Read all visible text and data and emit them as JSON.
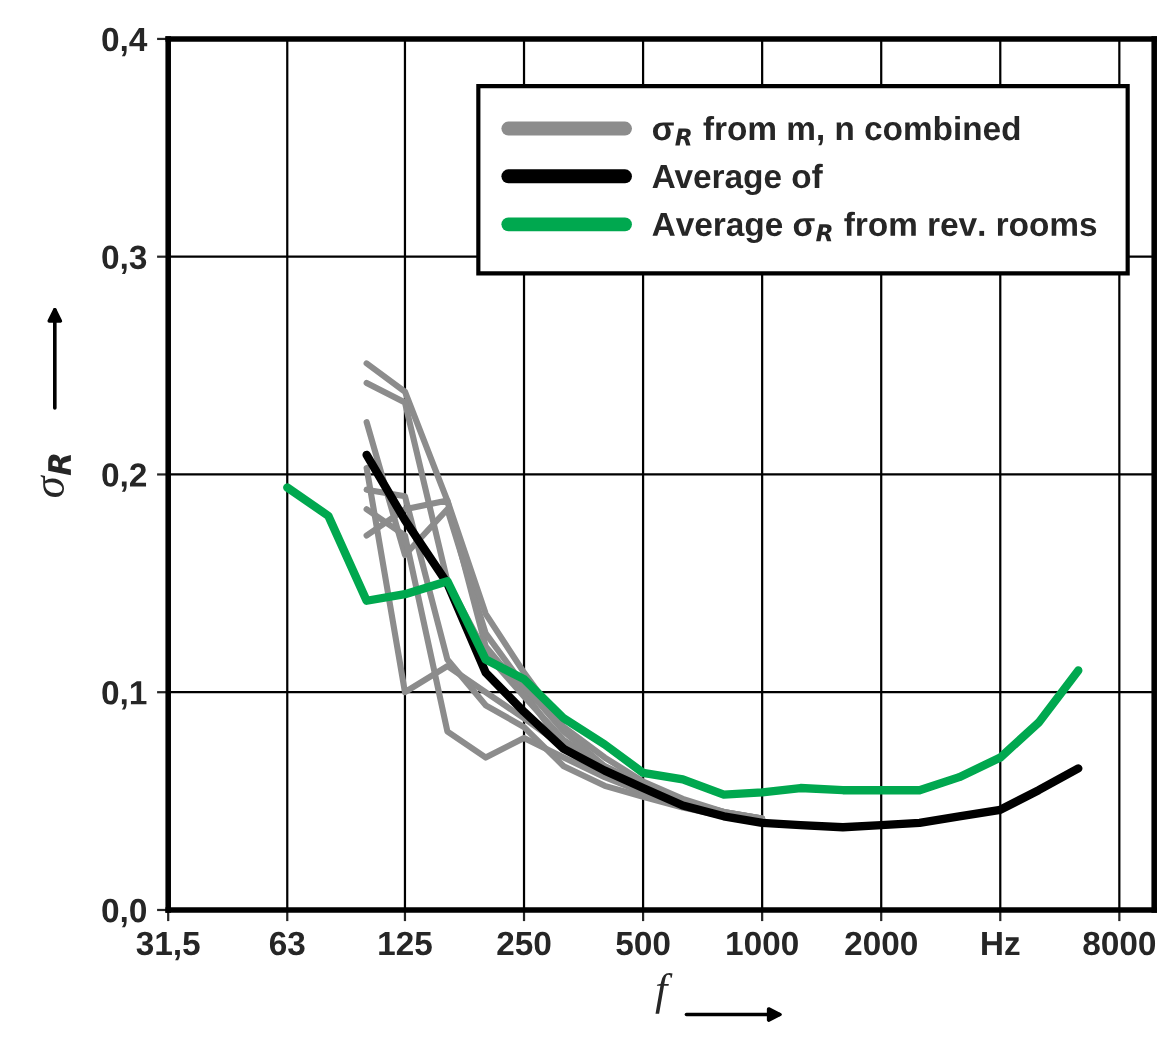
{
  "chart_data": {
    "type": "line",
    "xlabel": "f",
    "ylabel": "σ$_{R}$",
    "xlim": [
      31.5,
      9800
    ],
    "ylim": [
      0,
      0.4
    ],
    "log": "x",
    "xticks": [
      {
        "value": 31.5,
        "label": "31,5"
      },
      63,
      125,
      250,
      500,
      1000,
      2000,
      {
        "value": 4000,
        "label": "Hz"
      },
      8000
    ],
    "yticks": [
      {
        "value": 0,
        "label": "0,0"
      },
      {
        "value": 0.1,
        "label": "0,1"
      },
      {
        "value": 0.2,
        "label": "0,2"
      },
      {
        "value": 0.3,
        "label": "0,3"
      },
      {
        "value": 0.4,
        "label": "0,4"
      }
    ],
    "grid": true,
    "legend": "top right",
    "series": [
      {
        "name": "σ$_{R}$ from m, n combined",
        "color": "#8c8c8c",
        "x": [
          100,
          125,
          160,
          200,
          250,
          315,
          400,
          500,
          630,
          800,
          1000
        ],
        "values": [
          0.251,
          0.238,
          0.188,
          0.121,
          0.1,
          0.075,
          0.064,
          0.058,
          0.05,
          0.045,
          0.042
        ]
      },
      {
        "color": "#8c8c8c",
        "x": [
          100,
          125,
          160,
          200,
          250,
          315,
          400,
          500,
          630,
          800,
          1000
        ],
        "values": [
          0.242,
          0.233,
          0.151,
          0.118,
          0.098,
          0.078,
          0.066,
          0.057,
          0.049,
          0.044,
          0.041
        ]
      },
      {
        "color": "#8c8c8c",
        "x": [
          100,
          125,
          160,
          200,
          250,
          315,
          400,
          500,
          630,
          800,
          1000
        ],
        "values": [
          0.224,
          0.163,
          0.184,
          0.127,
          0.103,
          0.082,
          0.066,
          0.058,
          0.05,
          0.045,
          0.042
        ]
      },
      {
        "color": "#8c8c8c",
        "x": [
          100,
          125,
          160,
          200,
          250,
          315,
          400,
          500,
          630,
          800,
          1000
        ],
        "values": [
          0.203,
          0.1,
          0.112,
          0.1,
          0.088,
          0.075,
          0.064,
          0.056,
          0.049,
          0.044,
          0.041
        ]
      },
      {
        "color": "#8c8c8c",
        "x": [
          100,
          125,
          160,
          200,
          250,
          315,
          400,
          500,
          630,
          800,
          1000
        ],
        "values": [
          0.184,
          0.172,
          0.082,
          0.07,
          0.079,
          0.07,
          0.061,
          0.054,
          0.048,
          0.043,
          0.04
        ]
      },
      {
        "color": "#8c8c8c",
        "x": [
          100,
          125,
          160,
          200,
          250,
          315,
          400,
          500,
          630,
          800,
          1000
        ],
        "values": [
          0.193,
          0.19,
          0.115,
          0.094,
          0.084,
          0.066,
          0.057,
          0.052,
          0.047,
          0.043,
          0.04
        ]
      },
      {
        "color": "#8c8c8c",
        "x": [
          100,
          125,
          160,
          200,
          250,
          315,
          400,
          500,
          630,
          800,
          1000
        ],
        "values": [
          0.172,
          0.184,
          0.188,
          0.136,
          0.109,
          0.084,
          0.07,
          0.059,
          0.051,
          0.045,
          0.042
        ]
      },
      {
        "name": "Average of",
        "color": "#000000",
        "x": [
          100,
          125,
          160,
          200,
          250,
          315,
          400,
          500,
          630,
          800,
          1000,
          1250,
          1600,
          2000,
          2500,
          3150,
          4000,
          5000,
          6300
        ],
        "values": [
          0.209,
          0.179,
          0.15,
          0.109,
          0.091,
          0.074,
          0.064,
          0.056,
          0.048,
          0.043,
          0.04,
          0.039,
          0.038,
          0.039,
          0.04,
          0.043,
          0.046,
          0.055,
          0.065
        ]
      },
      {
        "name": "Average σ$_{R}$ from rev. rooms",
        "color": "#00a84f",
        "x": [
          63,
          80,
          100,
          125,
          160,
          200,
          250,
          315,
          400,
          500,
          630,
          800,
          1000,
          1250,
          1600,
          2000,
          2500,
          3150,
          4000,
          5000,
          6300
        ],
        "values": [
          0.194,
          0.181,
          0.142,
          0.145,
          0.151,
          0.115,
          0.106,
          0.088,
          0.076,
          0.063,
          0.06,
          0.053,
          0.054,
          0.056,
          0.055,
          0.055,
          0.055,
          0.061,
          0.07,
          0.086,
          0.11
        ]
      }
    ]
  }
}
